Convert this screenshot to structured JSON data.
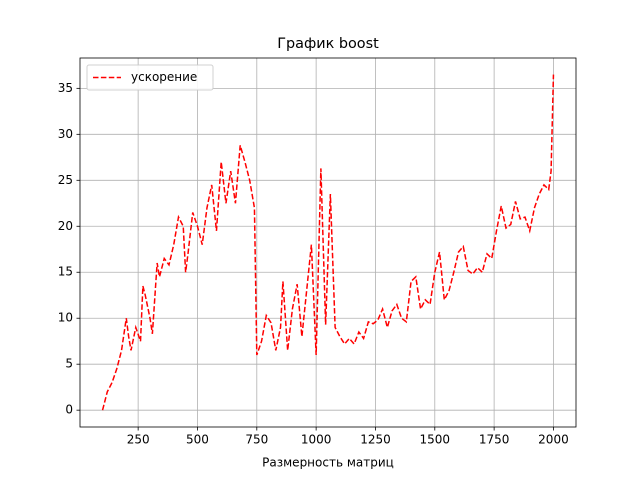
{
  "chart_data": {
    "type": "line",
    "title": "График boost",
    "x_label": "Размерность матриц",
    "x": [
      100,
      120,
      140,
      160,
      180,
      200,
      210,
      220,
      240,
      260,
      270,
      280,
      300,
      310,
      330,
      340,
      360,
      380,
      400,
      420,
      440,
      450,
      460,
      480,
      500,
      520,
      540,
      560,
      580,
      600,
      620,
      640,
      660,
      680,
      700,
      720,
      740,
      750,
      770,
      790,
      810,
      830,
      850,
      860,
      880,
      900,
      920,
      940,
      960,
      980,
      1000,
      1020,
      1040,
      1060,
      1080,
      1100,
      1120,
      1140,
      1160,
      1180,
      1200,
      1220,
      1240,
      1260,
      1280,
      1300,
      1320,
      1340,
      1360,
      1380,
      1400,
      1420,
      1440,
      1460,
      1480,
      1500,
      1520,
      1540,
      1560,
      1580,
      1600,
      1620,
      1640,
      1660,
      1680,
      1700,
      1720,
      1740,
      1760,
      1780,
      1800,
      1820,
      1840,
      1860,
      1880,
      1900,
      1920,
      1940,
      1960,
      1980,
      1990,
      2000
    ],
    "series": [
      {
        "name": "ускорение",
        "color": "#ff0000",
        "dashed": true,
        "values": [
          0,
          2,
          3,
          4.5,
          6.5,
          10,
          8,
          6.5,
          9,
          7.5,
          13.5,
          12.5,
          10,
          8.3,
          16,
          14.5,
          16.5,
          15.8,
          18,
          21,
          20,
          15,
          17,
          21.5,
          20,
          18,
          22,
          24.5,
          19.5,
          27,
          22.5,
          26,
          22.5,
          28.8,
          27,
          25,
          22,
          6,
          7.5,
          10.3,
          9.5,
          6.5,
          9,
          14,
          6.5,
          11,
          13.7,
          8,
          13,
          18,
          6,
          26.3,
          9.3,
          23.5,
          9,
          8,
          7.2,
          7.8,
          7.2,
          8.5,
          7.8,
          9.6,
          9.4,
          9.8,
          11,
          9,
          10.8,
          11.5,
          10,
          9.6,
          14,
          14.5,
          11,
          12,
          11.5,
          15,
          17.2,
          12,
          13,
          15,
          17.2,
          17.8,
          15.2,
          14.8,
          15.5,
          15,
          17,
          16.5,
          19.5,
          22.2,
          19.8,
          20.2,
          22.7,
          20.8,
          21,
          19.5,
          22,
          23.5,
          24.5,
          24,
          26,
          36.5
        ]
      }
    ],
    "xlim": [
      5,
      2095
    ],
    "ylim": [
      -1.83,
      38.3
    ],
    "xticks": [
      250,
      500,
      750,
      1000,
      1250,
      1500,
      1750,
      2000
    ],
    "yticks": [
      0,
      5,
      10,
      15,
      20,
      25,
      30,
      35
    ],
    "grid": true,
    "legend": "upper left"
  }
}
